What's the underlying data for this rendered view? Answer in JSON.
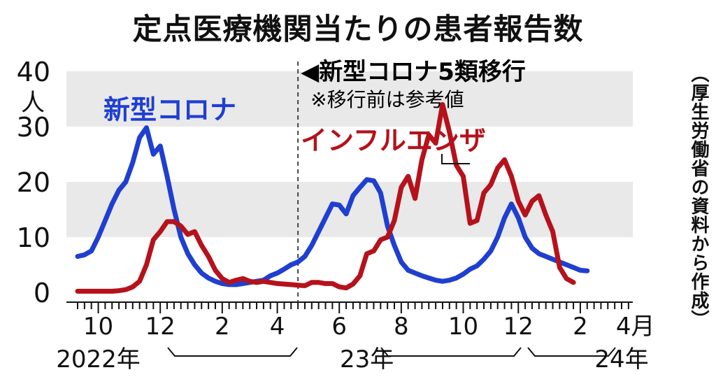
{
  "title": "定点医療機関当たりの患者報告数",
  "source": "（厚生労働省の資料から作成）",
  "chart_data": {
    "type": "line",
    "ylim": [
      0,
      40
    ],
    "yticks": [
      0,
      10,
      20,
      30,
      40
    ],
    "yunit": "人",
    "grid": "bands",
    "xlim": [
      0,
      79
    ],
    "month_ticks": [
      {
        "x": 3,
        "label": "10"
      },
      {
        "x": 12,
        "label": "12"
      },
      {
        "x": 21,
        "label": "2"
      },
      {
        "x": 29,
        "label": "4"
      },
      {
        "x": 38,
        "label": "6"
      },
      {
        "x": 47,
        "label": "8"
      },
      {
        "x": 56,
        "label": "10"
      },
      {
        "x": 64,
        "label": "12"
      },
      {
        "x": 73,
        "label": "2"
      },
      {
        "x": 81,
        "label": "4月"
      }
    ],
    "year_labels": [
      {
        "x": 3,
        "label": "2022年"
      },
      {
        "x": 42,
        "label": "23年"
      },
      {
        "x": 79,
        "label": "24年"
      }
    ],
    "transition": {
      "x": 32,
      "label": "◀新型コロナ5類移行",
      "note": "※移行前は参考値"
    },
    "series": [
      {
        "name": "新型コロナ",
        "color": "#1f3fd1",
        "points": [
          [
            0,
            6.5
          ],
          [
            1,
            6.8
          ],
          [
            2,
            7.5
          ],
          [
            3,
            10
          ],
          [
            4,
            13
          ],
          [
            5,
            16
          ],
          [
            6,
            18.5
          ],
          [
            7,
            20
          ],
          [
            8,
            23.5
          ],
          [
            9,
            28
          ],
          [
            10,
            29.8
          ],
          [
            11,
            25
          ],
          [
            12,
            26.5
          ],
          [
            13,
            21
          ],
          [
            14,
            15
          ],
          [
            15,
            10
          ],
          [
            16,
            7
          ],
          [
            17,
            5
          ],
          [
            18,
            3.5
          ],
          [
            19,
            2.6
          ],
          [
            20,
            2.0
          ],
          [
            21,
            1.6
          ],
          [
            22,
            1.4
          ],
          [
            23,
            1.4
          ],
          [
            24,
            1.6
          ],
          [
            25,
            1.8
          ],
          [
            26,
            2.0
          ],
          [
            27,
            2.2
          ],
          [
            28,
            3.0
          ],
          [
            29,
            3.5
          ],
          [
            30,
            4.2
          ],
          [
            31,
            5.0
          ],
          [
            32,
            5.5
          ],
          [
            33,
            6.5
          ],
          [
            34,
            8.5
          ],
          [
            35,
            11
          ],
          [
            36,
            13.5
          ],
          [
            37,
            16
          ],
          [
            38,
            15.8
          ],
          [
            39,
            14.2
          ],
          [
            40,
            17.5
          ],
          [
            41,
            19
          ],
          [
            42,
            20.4
          ],
          [
            43,
            20.2
          ],
          [
            44,
            18
          ],
          [
            45,
            12
          ],
          [
            46,
            8.5
          ],
          [
            47,
            5.5
          ],
          [
            48,
            4
          ],
          [
            49,
            3.5
          ],
          [
            50,
            3.0
          ],
          [
            51,
            2.6
          ],
          [
            52,
            2.2
          ],
          [
            53,
            2.0
          ],
          [
            54,
            2.2
          ],
          [
            55,
            2.6
          ],
          [
            56,
            3.3
          ],
          [
            57,
            4.2
          ],
          [
            58,
            4.8
          ],
          [
            59,
            6
          ],
          [
            60,
            7.5
          ],
          [
            61,
            10
          ],
          [
            62,
            13.5
          ],
          [
            63,
            16
          ],
          [
            64,
            13.5
          ],
          [
            65,
            10
          ],
          [
            66,
            8
          ],
          [
            67,
            7
          ],
          [
            68,
            6.5
          ],
          [
            69,
            6
          ],
          [
            70,
            5.5
          ],
          [
            71,
            5
          ],
          [
            72,
            4.5
          ],
          [
            73,
            4.0
          ],
          [
            74,
            3.9
          ]
        ]
      },
      {
        "name": "インフルエンザ",
        "color": "#b5121b",
        "points": [
          [
            0,
            0.2
          ],
          [
            1,
            0.2
          ],
          [
            2,
            0.2
          ],
          [
            3,
            0.2
          ],
          [
            4,
            0.2
          ],
          [
            5,
            0.2
          ],
          [
            6,
            0.3
          ],
          [
            7,
            0.5
          ],
          [
            8,
            1.0
          ],
          [
            9,
            2.0
          ],
          [
            10,
            5.0
          ],
          [
            11,
            9.5
          ],
          [
            12,
            11
          ],
          [
            13,
            12.8
          ],
          [
            14,
            12.8
          ],
          [
            15,
            12
          ],
          [
            16,
            10.5
          ],
          [
            17,
            11
          ],
          [
            18,
            8.5
          ],
          [
            19,
            6.5
          ],
          [
            20,
            4.0
          ],
          [
            21,
            2.5
          ],
          [
            22,
            1.8
          ],
          [
            23,
            2.2
          ],
          [
            24,
            2.5
          ],
          [
            25,
            2.0
          ],
          [
            26,
            1.8
          ],
          [
            27,
            2.0
          ],
          [
            28,
            1.8
          ],
          [
            29,
            1.6
          ],
          [
            30,
            1.5
          ],
          [
            31,
            1.4
          ],
          [
            32,
            1.3
          ],
          [
            33,
            1.2
          ],
          [
            34,
            1.8
          ],
          [
            35,
            1.8
          ],
          [
            36,
            1.6
          ],
          [
            37,
            1.6
          ],
          [
            38,
            1.0
          ],
          [
            39,
            0.8
          ],
          [
            40,
            1.5
          ],
          [
            41,
            3.0
          ],
          [
            42,
            7.0
          ],
          [
            43,
            7.5
          ],
          [
            44,
            9.5
          ],
          [
            45,
            10
          ],
          [
            46,
            13
          ],
          [
            47,
            19
          ],
          [
            48,
            21
          ],
          [
            49,
            17
          ],
          [
            50,
            24
          ],
          [
            51,
            28.5
          ],
          [
            52,
            27
          ],
          [
            53,
            34
          ],
          [
            54,
            29
          ],
          [
            55,
            23
          ],
          [
            56,
            21
          ],
          [
            57,
            12.5
          ],
          [
            58,
            13
          ],
          [
            59,
            18
          ],
          [
            60,
            19.5
          ],
          [
            61,
            22.5
          ],
          [
            62,
            24
          ],
          [
            63,
            21
          ],
          [
            64,
            16.5
          ],
          [
            65,
            14
          ],
          [
            66,
            16.5
          ],
          [
            67,
            17.5
          ],
          [
            68,
            14
          ],
          [
            69,
            11
          ],
          [
            70,
            4.5
          ],
          [
            71,
            2.5
          ],
          [
            72,
            1.8
          ]
        ]
      }
    ]
  }
}
